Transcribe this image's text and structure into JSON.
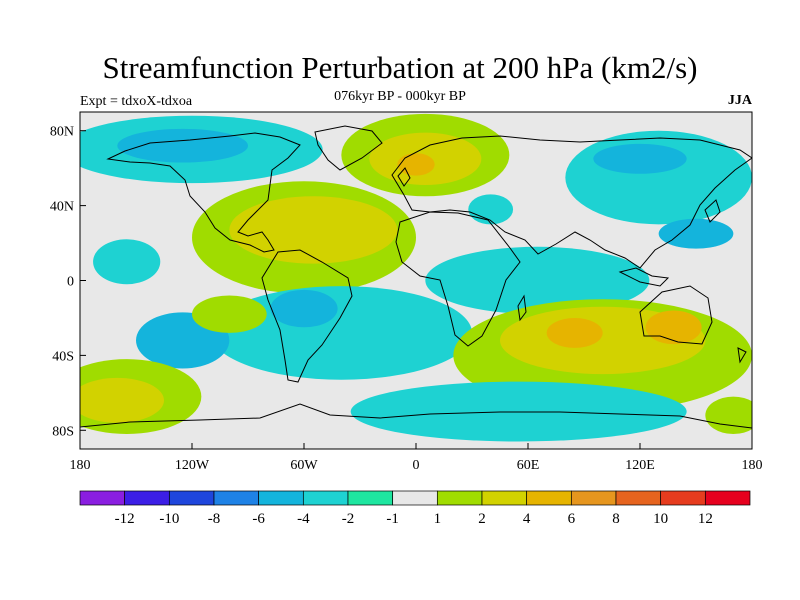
{
  "title": "Streamfunction Perturbation at 200 hPa (km2/s)",
  "left_label": "Expt = tdxoX-tdxoa",
  "center_label": "076kyr BP - 000kyr BP",
  "right_label": "JJA",
  "axes": {
    "lat_ticks": [
      {
        "value": 80,
        "label": "80N"
      },
      {
        "value": 40,
        "label": "40N"
      },
      {
        "value": 0,
        "label": "0"
      },
      {
        "value": -40,
        "label": "40S"
      },
      {
        "value": -80,
        "label": "80S"
      }
    ],
    "lon_ticks": [
      {
        "value": -180,
        "label": "180"
      },
      {
        "value": -120,
        "label": "120W"
      },
      {
        "value": -60,
        "label": "60W"
      },
      {
        "value": 0,
        "label": "0"
      },
      {
        "value": 60,
        "label": "60E"
      },
      {
        "value": 120,
        "label": "120E"
      },
      {
        "value": 180,
        "label": "180"
      }
    ],
    "lon_range": [
      -180,
      180
    ],
    "lat_range": [
      -90,
      90
    ]
  },
  "colorbar": {
    "colors": [
      "#8a1ee0",
      "#3c1ee6",
      "#1e46dc",
      "#1e82e6",
      "#14b4dc",
      "#1ed2d2",
      "#1ee6a0",
      "#e8e8e8",
      "#a0dc00",
      "#d2d200",
      "#e6b400",
      "#e6961e",
      "#e6641e",
      "#e63c1e",
      "#e6001e"
    ],
    "labels": [
      "-12",
      "-10",
      "-8",
      "-6",
      "-4",
      "-2",
      "-1",
      "1",
      "2",
      "4",
      "6",
      "8",
      "10",
      "12"
    ]
  },
  "field_regions": [
    {
      "level": "teal",
      "color": "#1ed2d2",
      "cx": -120,
      "cy": 70,
      "rx": 70,
      "ry": 18
    },
    {
      "level": "blue",
      "color": "#14b4dc",
      "cx": -125,
      "cy": 72,
      "rx": 35,
      "ry": 9
    },
    {
      "level": "teal",
      "color": "#1ed2d2",
      "cx": -155,
      "cy": 10,
      "rx": 18,
      "ry": 12
    },
    {
      "level": "green",
      "color": "#a0dc00",
      "cx": -60,
      "cy": 23,
      "rx": 60,
      "ry": 30
    },
    {
      "level": "yellow",
      "color": "#d2d200",
      "cx": -55,
      "cy": 27,
      "rx": 45,
      "ry": 18
    },
    {
      "level": "green",
      "color": "#a0dc00",
      "cx": 5,
      "cy": 67,
      "rx": 45,
      "ry": 22
    },
    {
      "level": "yellow",
      "color": "#d2d200",
      "cx": 5,
      "cy": 65,
      "rx": 30,
      "ry": 14
    },
    {
      "level": "orange",
      "color": "#e6b400",
      "cx": 0,
      "cy": 62,
      "rx": 10,
      "ry": 6
    },
    {
      "level": "teal",
      "color": "#1ed2d2",
      "cx": 40,
      "cy": 38,
      "rx": 12,
      "ry": 8
    },
    {
      "level": "teal",
      "color": "#1ed2d2",
      "cx": 130,
      "cy": 55,
      "rx": 50,
      "ry": 25
    },
    {
      "level": "blue",
      "color": "#14b4dc",
      "cx": 120,
      "cy": 65,
      "rx": 25,
      "ry": 8
    },
    {
      "level": "blue",
      "color": "#14b4dc",
      "cx": 150,
      "cy": 25,
      "rx": 20,
      "ry": 8
    },
    {
      "level": "teal",
      "color": "#1ed2d2",
      "cx": 65,
      "cy": 0,
      "rx": 60,
      "ry": 18
    },
    {
      "level": "teal",
      "color": "#1ed2d2",
      "cx": -40,
      "cy": -28,
      "rx": 70,
      "ry": 25
    },
    {
      "level": "blue",
      "color": "#14b4dc",
      "cx": -60,
      "cy": -15,
      "rx": 18,
      "ry": 10
    },
    {
      "level": "blue",
      "color": "#14b4dc",
      "cx": -125,
      "cy": -32,
      "rx": 25,
      "ry": 15
    },
    {
      "level": "green",
      "color": "#a0dc00",
      "cx": -155,
      "cy": -62,
      "rx": 40,
      "ry": 20
    },
    {
      "level": "yellow",
      "color": "#d2d200",
      "cx": -160,
      "cy": -64,
      "rx": 25,
      "ry": 12
    },
    {
      "level": "green",
      "color": "#a0dc00",
      "cx": -100,
      "cy": -18,
      "rx": 20,
      "ry": 10
    },
    {
      "level": "green",
      "color": "#a0dc00",
      "cx": 100,
      "cy": -40,
      "rx": 80,
      "ry": 30
    },
    {
      "level": "yellow",
      "color": "#d2d200",
      "cx": 100,
      "cy": -32,
      "rx": 55,
      "ry": 18
    },
    {
      "level": "orange",
      "color": "#e6b400",
      "cx": 85,
      "cy": -28,
      "rx": 15,
      "ry": 8
    },
    {
      "level": "orange",
      "color": "#e6b400",
      "cx": 138,
      "cy": -25,
      "rx": 15,
      "ry": 9
    },
    {
      "level": "teal",
      "color": "#1ed2d2",
      "cx": 55,
      "cy": -70,
      "rx": 90,
      "ry": 16
    },
    {
      "level": "green",
      "color": "#a0dc00",
      "cx": 170,
      "cy": -72,
      "rx": 15,
      "ry": 10
    }
  ]
}
